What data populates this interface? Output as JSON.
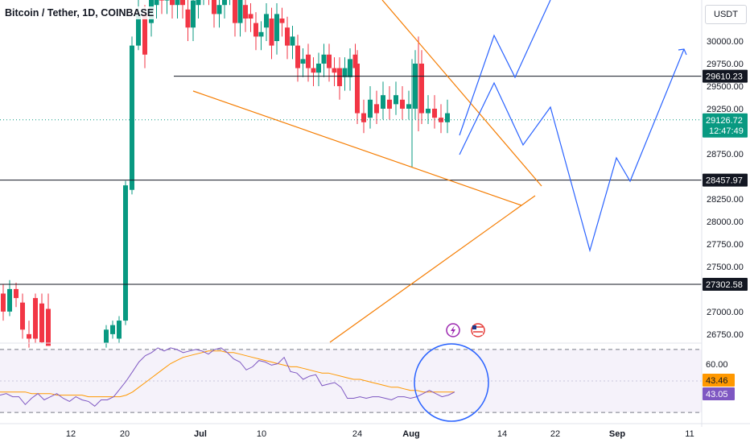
{
  "header": {
    "title": "Bitcoin / Tether, 1D, COINBASE",
    "currency_button": "USDT"
  },
  "chart_data": {
    "type": "candlestick",
    "price_axis": {
      "ticks": [
        "30000.00",
        "29750.00",
        "29500.00",
        "29250.00",
        "28750.00",
        "28250.00",
        "28000.00",
        "27750.00",
        "27500.00",
        "27000.00",
        "26750.00"
      ],
      "range": [
        26650,
        30700
      ]
    },
    "time_axis": {
      "labels": [
        "12",
        "20",
        "Jul",
        "10",
        "24",
        "Aug",
        "14",
        "22",
        "Sep",
        "11"
      ]
    },
    "horizontal_levels": [
      {
        "price": 29610.23,
        "label": "29610.23",
        "style": "dark"
      },
      {
        "price": 28457.97,
        "label": "28457.97",
        "style": "dark"
      },
      {
        "price": 27302.58,
        "label": "27302.58",
        "style": "dark"
      }
    ],
    "current_price": {
      "price": 29126.72,
      "label": "29126.72",
      "countdown": "12:47:49",
      "color": "#089981"
    },
    "colors": {
      "up": "#089981",
      "down": "#f23645",
      "trendline": "#f57c00",
      "projection": "#2962ff",
      "level": "#131722",
      "rsi": "#7e57c2",
      "rsi_ma": "#ff9800"
    },
    "drawings": {
      "triangle": "orange converging trendlines",
      "projection": "blue zigzag price path"
    },
    "indicator": {
      "name": "RSI",
      "ticks": [
        "60.00",
        "43.46",
        "43.05"
      ],
      "rsi_value": "43.05",
      "rsi_ma_value": "43.46",
      "band_upper": 70,
      "band_lower": 30,
      "range": [
        27,
        73
      ],
      "rsi_values": [
        41,
        42,
        40,
        40,
        35,
        39,
        42,
        38,
        40,
        42,
        39,
        37,
        40,
        38,
        37,
        34,
        38,
        38,
        40,
        45,
        50,
        56,
        62,
        66,
        68,
        71,
        69,
        71,
        70,
        68,
        69,
        70,
        69,
        67,
        70,
        71,
        68,
        64,
        62,
        57,
        59,
        63,
        62,
        60,
        61,
        65,
        56,
        55,
        51,
        53,
        54,
        47,
        48,
        49,
        46,
        39,
        39,
        40,
        39,
        40,
        40,
        39,
        38,
        40,
        40,
        39,
        40,
        42,
        44,
        42,
        40,
        41,
        43
      ],
      "rsi_ma_values": [
        43,
        43,
        43,
        43,
        43,
        42,
        42,
        42,
        42,
        41,
        41,
        41,
        41,
        41,
        40,
        40,
        40,
        40,
        40,
        40,
        41,
        43,
        46,
        49,
        52,
        55,
        58,
        61,
        63,
        65,
        66,
        67,
        68,
        69,
        69,
        69,
        68,
        68,
        67,
        66,
        65,
        64,
        63,
        62,
        61,
        60,
        59,
        59,
        58,
        57,
        56,
        55,
        55,
        54,
        53,
        52,
        51,
        51,
        50,
        49,
        48,
        47,
        46,
        46,
        45,
        44,
        44,
        43,
        43,
        43,
        43,
        43,
        43
      ]
    }
  },
  "events": {
    "flash_icon": "flash-icon",
    "us_flag_icon": "us-flag-icon"
  }
}
